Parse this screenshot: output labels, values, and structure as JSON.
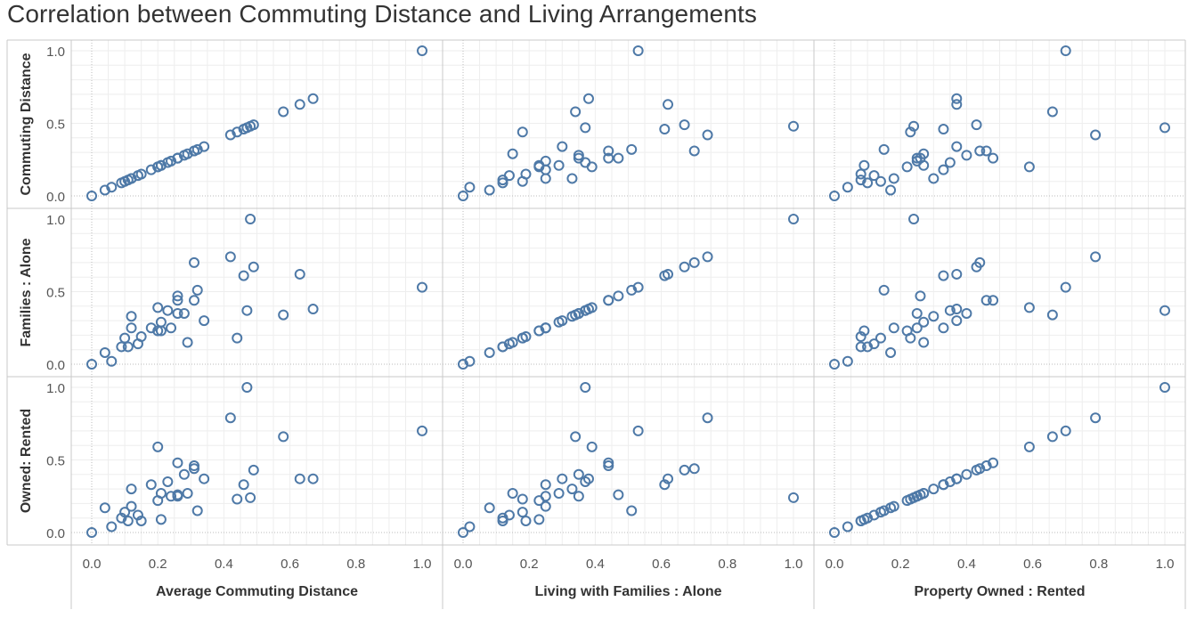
{
  "title": "Correlation between Commuting Distance and Living Arrangements",
  "colors": {
    "marker": "#4e79a7",
    "grid": "#eeeeee",
    "zero_line": "#bbbbbb",
    "border": "#c8c8c8",
    "text": "#333333"
  },
  "chart_data": {
    "type": "scatter",
    "layout": "scatter-matrix",
    "marker": "open-circle",
    "variables": [
      {
        "row_label": "Commuting Distance",
        "col_label": "Average Commuting Distance"
      },
      {
        "row_label": "Families : Alone",
        "col_label": "Living with Families : Alone"
      },
      {
        "row_label": "Owned: Rented",
        "col_label": "Property Owned : Rented"
      }
    ],
    "axis_range": [
      0,
      1
    ],
    "ticks": [
      "0.0",
      "0.2",
      "0.4",
      "0.6",
      "0.8",
      "1.0"
    ],
    "y_ticks": [
      "0.0",
      "0.5",
      "1.0"
    ],
    "grid": true,
    "observations": [
      {
        "commuting": 0.0,
        "families_alone": 0.0,
        "owned_rented": 0.0
      },
      {
        "commuting": 0.04,
        "families_alone": 0.08,
        "owned_rented": 0.17
      },
      {
        "commuting": 0.06,
        "families_alone": 0.02,
        "owned_rented": 0.04
      },
      {
        "commuting": 0.09,
        "families_alone": 0.12,
        "owned_rented": 0.1
      },
      {
        "commuting": 0.1,
        "families_alone": 0.18,
        "owned_rented": 0.14
      },
      {
        "commuting": 0.11,
        "families_alone": 0.12,
        "owned_rented": 0.08
      },
      {
        "commuting": 0.12,
        "families_alone": 0.33,
        "owned_rented": 0.3
      },
      {
        "commuting": 0.12,
        "families_alone": 0.25,
        "owned_rented": 0.18
      },
      {
        "commuting": 0.14,
        "families_alone": 0.14,
        "owned_rented": 0.12
      },
      {
        "commuting": 0.15,
        "families_alone": 0.19,
        "owned_rented": 0.08
      },
      {
        "commuting": 0.18,
        "families_alone": 0.25,
        "owned_rented": 0.33
      },
      {
        "commuting": 0.2,
        "families_alone": 0.23,
        "owned_rented": 0.22
      },
      {
        "commuting": 0.2,
        "families_alone": 0.39,
        "owned_rented": 0.59
      },
      {
        "commuting": 0.21,
        "families_alone": 0.29,
        "owned_rented": 0.27
      },
      {
        "commuting": 0.21,
        "families_alone": 0.23,
        "owned_rented": 0.09
      },
      {
        "commuting": 0.23,
        "families_alone": 0.37,
        "owned_rented": 0.35
      },
      {
        "commuting": 0.24,
        "families_alone": 0.25,
        "owned_rented": 0.25
      },
      {
        "commuting": 0.26,
        "families_alone": 0.44,
        "owned_rented": 0.48
      },
      {
        "commuting": 0.26,
        "families_alone": 0.47,
        "owned_rented": 0.26
      },
      {
        "commuting": 0.26,
        "families_alone": 0.35,
        "owned_rented": 0.25
      },
      {
        "commuting": 0.28,
        "families_alone": 0.35,
        "owned_rented": 0.4
      },
      {
        "commuting": 0.29,
        "families_alone": 0.15,
        "owned_rented": 0.27
      },
      {
        "commuting": 0.31,
        "families_alone": 0.7,
        "owned_rented": 0.44
      },
      {
        "commuting": 0.31,
        "families_alone": 0.44,
        "owned_rented": 0.46
      },
      {
        "commuting": 0.32,
        "families_alone": 0.51,
        "owned_rented": 0.15
      },
      {
        "commuting": 0.34,
        "families_alone": 0.3,
        "owned_rented": 0.37
      },
      {
        "commuting": 0.42,
        "families_alone": 0.74,
        "owned_rented": 0.79
      },
      {
        "commuting": 0.44,
        "families_alone": 0.18,
        "owned_rented": 0.23
      },
      {
        "commuting": 0.46,
        "families_alone": 0.61,
        "owned_rented": 0.33
      },
      {
        "commuting": 0.47,
        "families_alone": 0.37,
        "owned_rented": 1.0
      },
      {
        "commuting": 0.48,
        "families_alone": 1.0,
        "owned_rented": 0.24
      },
      {
        "commuting": 0.49,
        "families_alone": 0.67,
        "owned_rented": 0.43
      },
      {
        "commuting": 0.58,
        "families_alone": 0.34,
        "owned_rented": 0.66
      },
      {
        "commuting": 0.63,
        "families_alone": 0.62,
        "owned_rented": 0.37
      },
      {
        "commuting": 0.67,
        "families_alone": 0.38,
        "owned_rented": 0.37
      },
      {
        "commuting": 1.0,
        "families_alone": 0.53,
        "owned_rented": 0.7
      }
    ]
  }
}
